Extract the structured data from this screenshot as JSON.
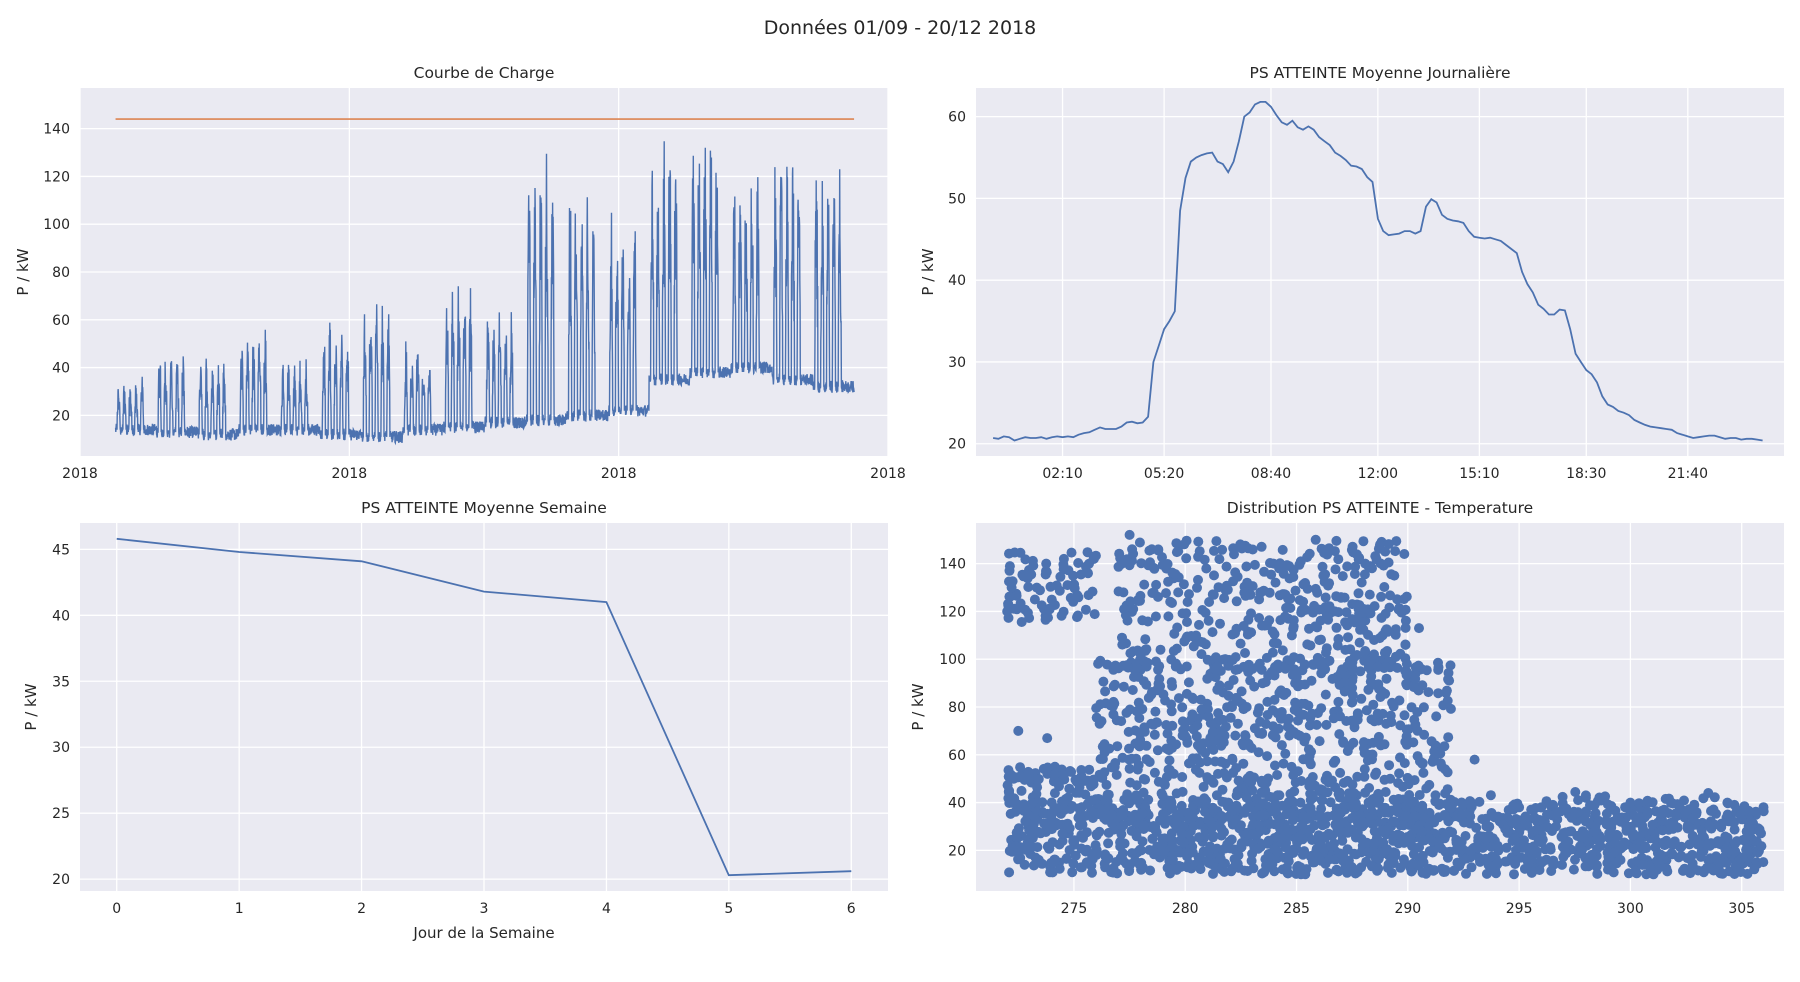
{
  "figure": {
    "suptitle": "Données 01/09 - 20/12 2018",
    "colors": {
      "background": "#eaeaf2",
      "series": "#4c72b0",
      "threshold": "#dd8452",
      "grid": "#ffffff",
      "text": "#262626"
    }
  },
  "chart_data": [
    {
      "type": "line",
      "title": "Courbe de Charge",
      "xlabel": "",
      "ylabel": "P / kW",
      "xticks": [
        "2018",
        "2018",
        "2018",
        "2018"
      ],
      "yticks": [
        20,
        40,
        60,
        80,
        100,
        120,
        140
      ],
      "ylim": [
        3,
        157
      ],
      "xrange_dates": [
        "2018-09-01",
        "2018-12-20"
      ],
      "threshold": 144,
      "grid": true,
      "series": [
        {
          "week_pattern": "weekday peaks, weekend low",
          "weekly_peaks": [
            39,
            50,
            48,
            60,
            47,
            63,
            74,
            53,
            79,
            70,
            140,
            120,
            112,
            145,
            150,
            132,
            145,
            138
          ],
          "weekly_base": [
            14,
            13,
            12,
            14,
            14,
            12,
            11,
            14,
            15,
            17,
            18,
            20,
            22,
            35,
            38,
            40,
            35,
            32
          ]
        }
      ]
    },
    {
      "type": "line",
      "title": "PS ATTEINTE Moyenne Journalière",
      "xlabel": "",
      "ylabel": "P / kW",
      "xticks": [
        "02:10",
        "05:20",
        "08:40",
        "12:00",
        "15:10",
        "18:30",
        "21:40"
      ],
      "yticks": [
        20,
        30,
        40,
        50,
        60
      ],
      "ylim": [
        18.5,
        63.5
      ],
      "grid": true,
      "series": [
        {
          "x_minutes_start": 0,
          "x_step_minutes": 10,
          "values": [
            20.7,
            20.6,
            20.9,
            20.8,
            20.4,
            20.6,
            20.8,
            20.7,
            20.7,
            20.8,
            20.6,
            20.8,
            20.9,
            20.8,
            20.9,
            20.8,
            21.1,
            21.3,
            21.4,
            21.7,
            22.0,
            21.8,
            21.8,
            21.8,
            22.1,
            22.6,
            22.7,
            22.5,
            22.6,
            23.3,
            30.0,
            32.0,
            34.0,
            35.0,
            36.2,
            48.5,
            52.5,
            54.5,
            55.0,
            55.3,
            55.5,
            55.6,
            54.5,
            54.2,
            53.2,
            54.5,
            57.0,
            60.0,
            60.5,
            61.5,
            61.8,
            61.8,
            61.2,
            60.2,
            59.3,
            59.0,
            59.5,
            58.7,
            58.4,
            58.8,
            58.4,
            57.5,
            57.0,
            56.5,
            55.6,
            55.2,
            54.7,
            54.0,
            53.9,
            53.6,
            52.6,
            52.0,
            47.5,
            46.0,
            45.5,
            45.6,
            45.7,
            46.0,
            46.0,
            45.7,
            46.0,
            49.0,
            49.9,
            49.5,
            48.0,
            47.5,
            47.3,
            47.2,
            47.0,
            46.0,
            45.3,
            45.2,
            45.1,
            45.2,
            45.0,
            44.8,
            44.3,
            43.8,
            43.3,
            41.0,
            39.5,
            38.5,
            37.0,
            36.5,
            35.8,
            35.8,
            36.4,
            36.3,
            34.0,
            31.0,
            30.0,
            29.0,
            28.5,
            27.5,
            25.8,
            24.8,
            24.5,
            24.0,
            23.8,
            23.5,
            22.9,
            22.6,
            22.3,
            22.1,
            22.0,
            21.9,
            21.8,
            21.7,
            21.3,
            21.1,
            20.9,
            20.7,
            20.8,
            20.9,
            21.0,
            21.0,
            20.8,
            20.6,
            20.7,
            20.7,
            20.5,
            20.6,
            20.6,
            20.5,
            20.4
          ]
        }
      ]
    },
    {
      "type": "line",
      "title": "PS ATTEINTE Moyenne Semaine",
      "xlabel": "Jour de la Semaine",
      "ylabel": "P / kW",
      "xticks": [
        0,
        1,
        2,
        3,
        4,
        5,
        6
      ],
      "yticks": [
        20,
        25,
        30,
        35,
        40,
        45
      ],
      "ylim": [
        19.1,
        47.0
      ],
      "grid": true,
      "series": [
        {
          "x": [
            0,
            1,
            2,
            3,
            4,
            5,
            6
          ],
          "values": [
            45.8,
            44.8,
            44.1,
            41.8,
            41.0,
            20.3,
            20.6
          ]
        }
      ]
    },
    {
      "type": "scatter",
      "title": "Distribution PS ATTEINTE - Temperature",
      "xlabel": "",
      "ylabel": "P / kW",
      "xticks": [
        275,
        280,
        285,
        290,
        295,
        300,
        305
      ],
      "yticks": [
        20,
        40,
        60,
        80,
        100,
        120,
        140
      ],
      "xlim": [
        270.6,
        306.9
      ],
      "ylim": [
        3,
        157
      ],
      "grid": true,
      "series": [
        {
          "clusters": [
            {
              "x": [
                272,
                306
              ],
              "y": [
                10,
                45
              ],
              "shape": "dense base band"
            },
            {
              "x": [
                276,
                292
              ],
              "y": [
                30,
                100
              ],
              "shape": "mid cloud"
            },
            {
              "x": [
                277,
                290
              ],
              "y": [
                95,
                150
              ],
              "shape": "high cloud"
            },
            {
              "x": [
                272,
                276
              ],
              "y": [
                35,
                55
              ],
              "shape": "cold low"
            },
            {
              "x": [
                272,
                276
              ],
              "y": [
                115,
                145
              ],
              "shape": "cold high"
            }
          ],
          "points": [
            [
              272.0,
              120
            ],
            [
              272.2,
              130
            ],
            [
              272.3,
              50
            ],
            [
              272.5,
              70
            ],
            [
              273.8,
              67
            ],
            [
              277.5,
              152
            ],
            [
              278.5,
              146
            ],
            [
              284.5,
              127
            ],
            [
              287.0,
              126
            ],
            [
              289.0,
              119
            ],
            [
              290.5,
              113
            ],
            [
              293.0,
              58
            ],
            [
              298.0,
              43
            ],
            [
              303.5,
              44
            ],
            [
              305.8,
              28
            ],
            [
              305.0,
              33
            ],
            [
              300.0,
              40
            ],
            [
              295.0,
              38
            ]
          ]
        }
      ]
    }
  ]
}
